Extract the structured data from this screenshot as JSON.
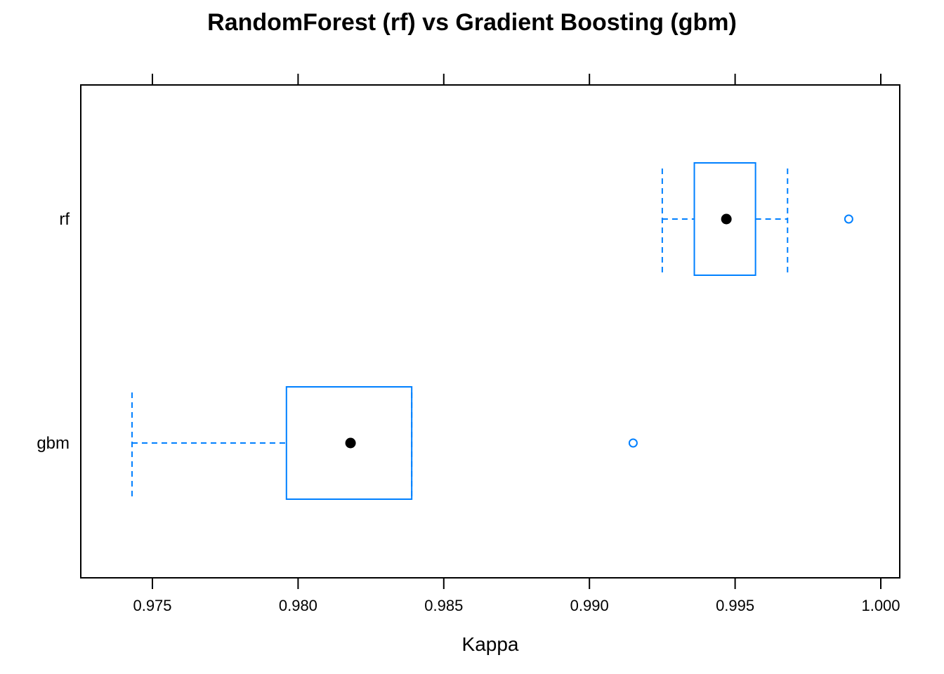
{
  "chart_data": {
    "type": "boxplot",
    "title": "RandomForest (rf) vs Gradient Boosting (gbm)",
    "xlabel": "Kappa",
    "ylabel": "",
    "xlim": [
      0.9725,
      1.0007
    ],
    "x_ticks": [
      "0.975",
      "0.980",
      "0.985",
      "0.990",
      "0.995",
      "1.000"
    ],
    "x_tick_values": [
      0.975,
      0.98,
      0.985,
      0.99,
      0.995,
      1.0
    ],
    "categories": [
      "rf",
      "gbm"
    ],
    "boxes": [
      {
        "name": "rf",
        "whisker_low": 0.9925,
        "q1": 0.9936,
        "median": 0.9947,
        "q3": 0.9957,
        "whisker_high": 0.9968,
        "outliers": [
          0.9989
        ]
      },
      {
        "name": "gbm",
        "whisker_low": 0.9743,
        "q1": 0.9796,
        "median": 0.9818,
        "q3": 0.9839,
        "whisker_high": 0.9839,
        "outliers": [
          0.9915
        ]
      }
    ],
    "box_color": "#0080ff",
    "median_color": "#000000",
    "grid": false,
    "legend": "none"
  }
}
